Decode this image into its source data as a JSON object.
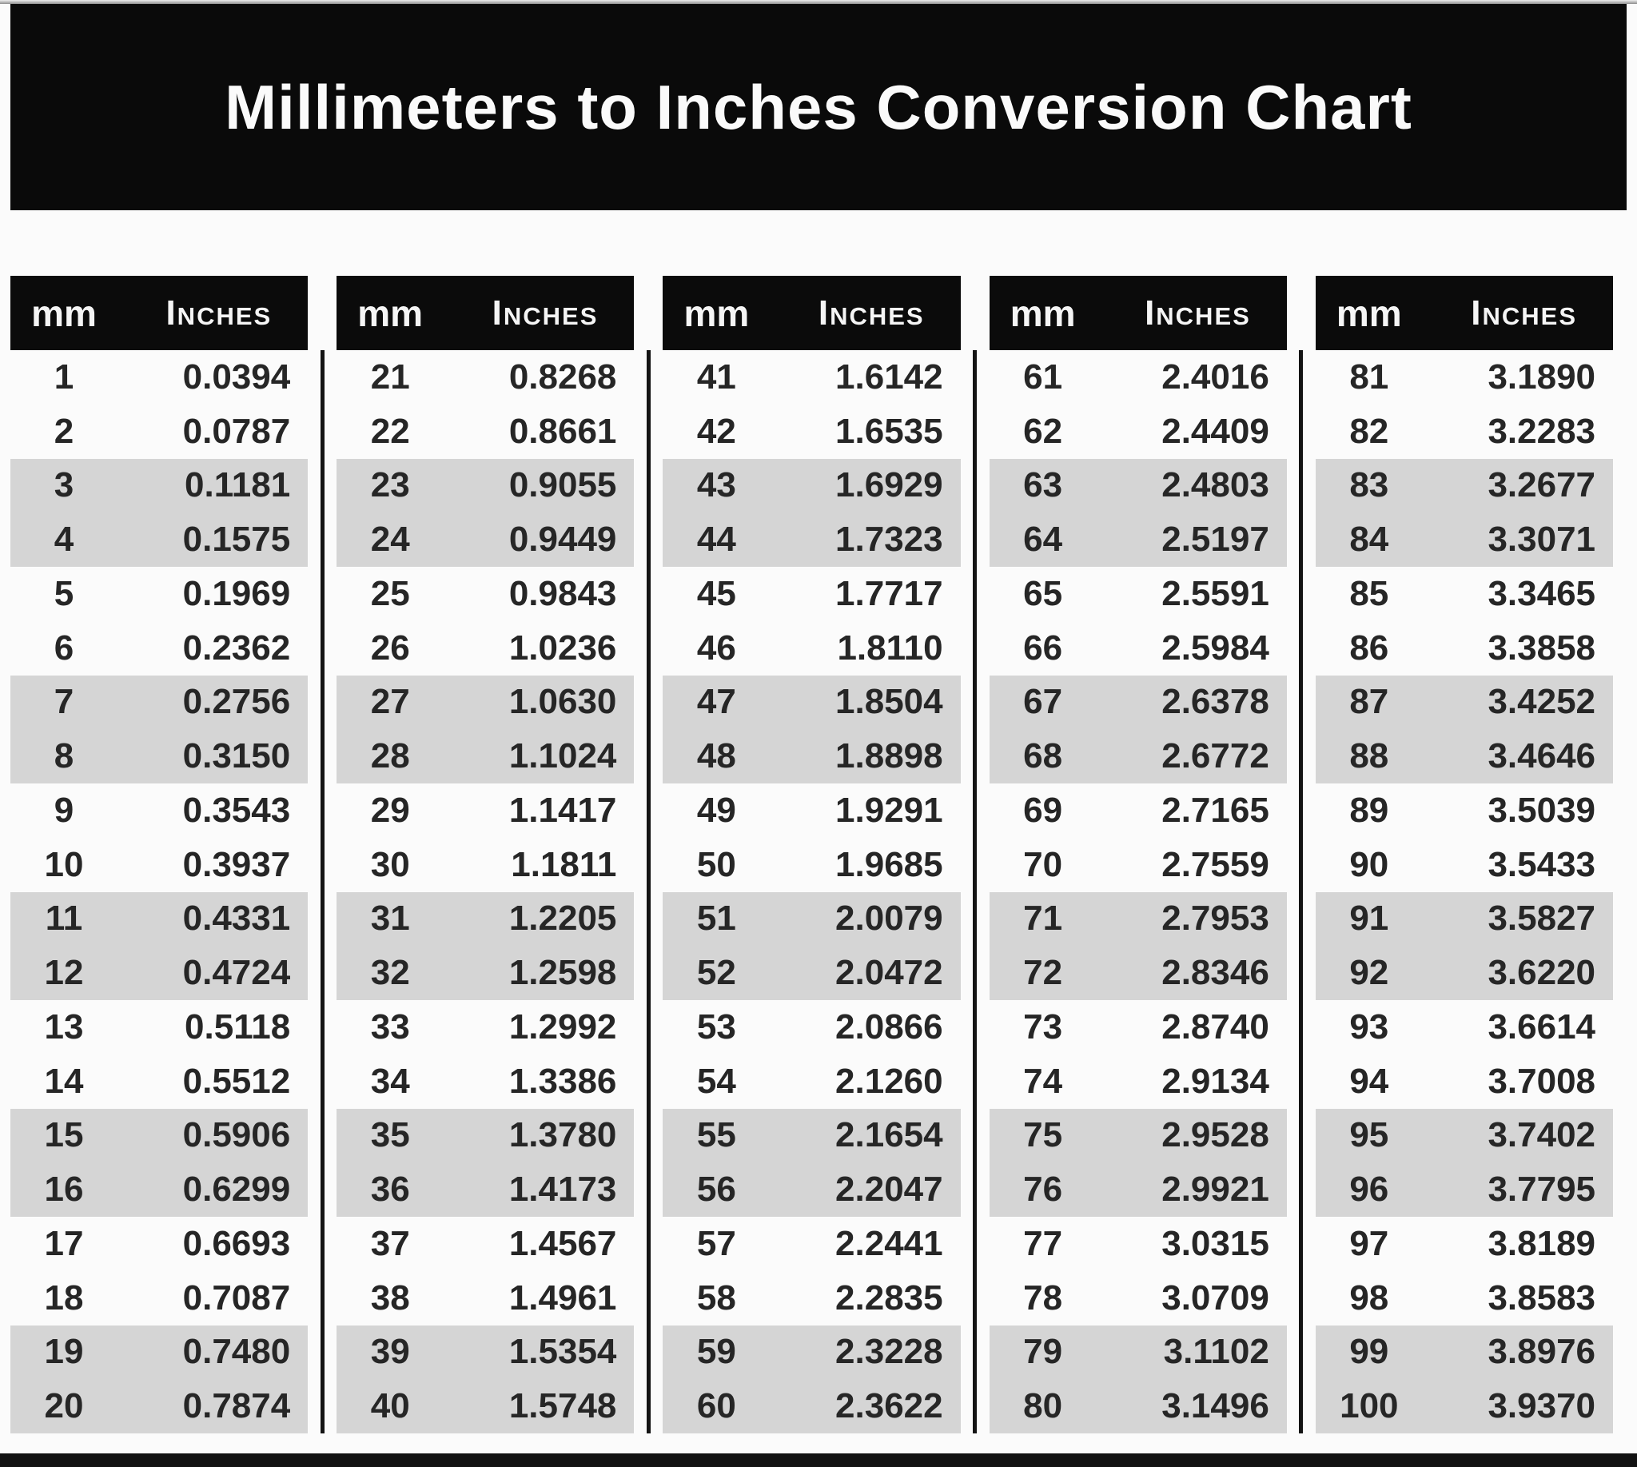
{
  "title": "Millimeters to Inches Conversion Chart",
  "columns": {
    "mm": "mm",
    "inches": "Inches"
  },
  "colors": {
    "band": "#0a0a0a",
    "row_alt": "#d5d5d5",
    "text": "#262626",
    "header_text": "#f5f5f5",
    "background": "#fbfbfb"
  },
  "chart_data": {
    "type": "table",
    "title": "Millimeters to Inches Conversion Chart",
    "column_headers": [
      "mm",
      "Inches"
    ],
    "row_shading": "alternating pairs of rows shaded gray (rows 3-4, 7-8, 11-12, 15-16, 19-20 of each group)",
    "groups": [
      {
        "rows": [
          {
            "mm": 1,
            "inches": "0.0394"
          },
          {
            "mm": 2,
            "inches": "0.0787"
          },
          {
            "mm": 3,
            "inches": "0.1181"
          },
          {
            "mm": 4,
            "inches": "0.1575"
          },
          {
            "mm": 5,
            "inches": "0.1969"
          },
          {
            "mm": 6,
            "inches": "0.2362"
          },
          {
            "mm": 7,
            "inches": "0.2756"
          },
          {
            "mm": 8,
            "inches": "0.3150"
          },
          {
            "mm": 9,
            "inches": "0.3543"
          },
          {
            "mm": 10,
            "inches": "0.3937"
          },
          {
            "mm": 11,
            "inches": "0.4331"
          },
          {
            "mm": 12,
            "inches": "0.4724"
          },
          {
            "mm": 13,
            "inches": "0.5118"
          },
          {
            "mm": 14,
            "inches": "0.5512"
          },
          {
            "mm": 15,
            "inches": "0.5906"
          },
          {
            "mm": 16,
            "inches": "0.6299"
          },
          {
            "mm": 17,
            "inches": "0.6693"
          },
          {
            "mm": 18,
            "inches": "0.7087"
          },
          {
            "mm": 19,
            "inches": "0.7480"
          },
          {
            "mm": 20,
            "inches": "0.7874"
          }
        ]
      },
      {
        "rows": [
          {
            "mm": 21,
            "inches": "0.8268"
          },
          {
            "mm": 22,
            "inches": "0.8661"
          },
          {
            "mm": 23,
            "inches": "0.9055"
          },
          {
            "mm": 24,
            "inches": "0.9449"
          },
          {
            "mm": 25,
            "inches": "0.9843"
          },
          {
            "mm": 26,
            "inches": "1.0236"
          },
          {
            "mm": 27,
            "inches": "1.0630"
          },
          {
            "mm": 28,
            "inches": "1.1024"
          },
          {
            "mm": 29,
            "inches": "1.1417"
          },
          {
            "mm": 30,
            "inches": "1.1811"
          },
          {
            "mm": 31,
            "inches": "1.2205"
          },
          {
            "mm": 32,
            "inches": "1.2598"
          },
          {
            "mm": 33,
            "inches": "1.2992"
          },
          {
            "mm": 34,
            "inches": "1.3386"
          },
          {
            "mm": 35,
            "inches": "1.3780"
          },
          {
            "mm": 36,
            "inches": "1.4173"
          },
          {
            "mm": 37,
            "inches": "1.4567"
          },
          {
            "mm": 38,
            "inches": "1.4961"
          },
          {
            "mm": 39,
            "inches": "1.5354"
          },
          {
            "mm": 40,
            "inches": "1.5748"
          }
        ]
      },
      {
        "rows": [
          {
            "mm": 41,
            "inches": "1.6142"
          },
          {
            "mm": 42,
            "inches": "1.6535"
          },
          {
            "mm": 43,
            "inches": "1.6929"
          },
          {
            "mm": 44,
            "inches": "1.7323"
          },
          {
            "mm": 45,
            "inches": "1.7717"
          },
          {
            "mm": 46,
            "inches": "1.8110"
          },
          {
            "mm": 47,
            "inches": "1.8504"
          },
          {
            "mm": 48,
            "inches": "1.8898"
          },
          {
            "mm": 49,
            "inches": "1.9291"
          },
          {
            "mm": 50,
            "inches": "1.9685"
          },
          {
            "mm": 51,
            "inches": "2.0079"
          },
          {
            "mm": 52,
            "inches": "2.0472"
          },
          {
            "mm": 53,
            "inches": "2.0866"
          },
          {
            "mm": 54,
            "inches": "2.1260"
          },
          {
            "mm": 55,
            "inches": "2.1654"
          },
          {
            "mm": 56,
            "inches": "2.2047"
          },
          {
            "mm": 57,
            "inches": "2.2441"
          },
          {
            "mm": 58,
            "inches": "2.2835"
          },
          {
            "mm": 59,
            "inches": "2.3228"
          },
          {
            "mm": 60,
            "inches": "2.3622"
          }
        ]
      },
      {
        "rows": [
          {
            "mm": 61,
            "inches": "2.4016"
          },
          {
            "mm": 62,
            "inches": "2.4409"
          },
          {
            "mm": 63,
            "inches": "2.4803"
          },
          {
            "mm": 64,
            "inches": "2.5197"
          },
          {
            "mm": 65,
            "inches": "2.5591"
          },
          {
            "mm": 66,
            "inches": "2.5984"
          },
          {
            "mm": 67,
            "inches": "2.6378"
          },
          {
            "mm": 68,
            "inches": "2.6772"
          },
          {
            "mm": 69,
            "inches": "2.7165"
          },
          {
            "mm": 70,
            "inches": "2.7559"
          },
          {
            "mm": 71,
            "inches": "2.7953"
          },
          {
            "mm": 72,
            "inches": "2.8346"
          },
          {
            "mm": 73,
            "inches": "2.8740"
          },
          {
            "mm": 74,
            "inches": "2.9134"
          },
          {
            "mm": 75,
            "inches": "2.9528"
          },
          {
            "mm": 76,
            "inches": "2.9921"
          },
          {
            "mm": 77,
            "inches": "3.0315"
          },
          {
            "mm": 78,
            "inches": "3.0709"
          },
          {
            "mm": 79,
            "inches": "3.1102"
          },
          {
            "mm": 80,
            "inches": "3.1496"
          }
        ]
      },
      {
        "rows": [
          {
            "mm": 81,
            "inches": "3.1890"
          },
          {
            "mm": 82,
            "inches": "3.2283"
          },
          {
            "mm": 83,
            "inches": "3.2677"
          },
          {
            "mm": 84,
            "inches": "3.3071"
          },
          {
            "mm": 85,
            "inches": "3.3465"
          },
          {
            "mm": 86,
            "inches": "3.3858"
          },
          {
            "mm": 87,
            "inches": "3.4252"
          },
          {
            "mm": 88,
            "inches": "3.4646"
          },
          {
            "mm": 89,
            "inches": "3.5039"
          },
          {
            "mm": 90,
            "inches": "3.5433"
          },
          {
            "mm": 91,
            "inches": "3.5827"
          },
          {
            "mm": 92,
            "inches": "3.6220"
          },
          {
            "mm": 93,
            "inches": "3.6614"
          },
          {
            "mm": 94,
            "inches": "3.7008"
          },
          {
            "mm": 95,
            "inches": "3.7402"
          },
          {
            "mm": 96,
            "inches": "3.7795"
          },
          {
            "mm": 97,
            "inches": "3.8189"
          },
          {
            "mm": 98,
            "inches": "3.8583"
          },
          {
            "mm": 99,
            "inches": "3.8976"
          },
          {
            "mm": 100,
            "inches": "3.9370"
          }
        ]
      }
    ]
  }
}
